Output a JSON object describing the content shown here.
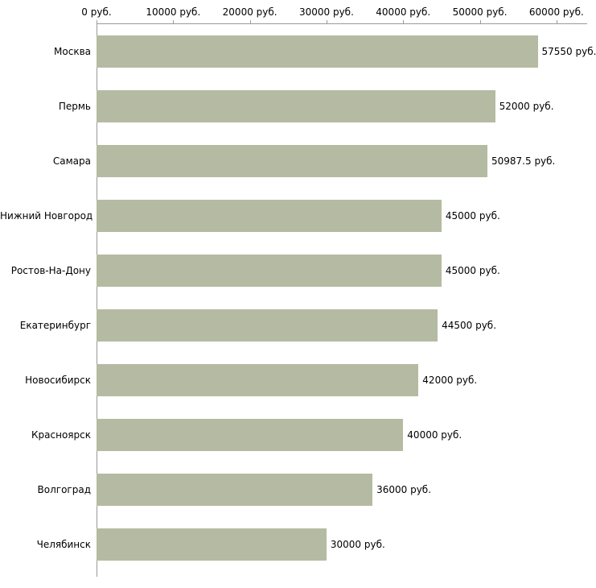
{
  "chart_data": {
    "type": "bar",
    "orientation": "horizontal",
    "title": "",
    "xlabel": "",
    "ylabel": "",
    "grid": false,
    "legend": false,
    "categories": [
      "Москва",
      "Пермь",
      "Самара",
      "Нижний Новгород",
      "Ростов-На-Дону",
      "Екатеринбург",
      "Новосибирск",
      "Красноярск",
      "Волгоград",
      "Челябинск"
    ],
    "values": [
      57550,
      52000,
      50987.5,
      45000,
      45000,
      44500,
      42000,
      40000,
      36000,
      30000
    ],
    "value_labels": [
      "57550 руб.",
      "52000 руб.",
      "50987.5 руб.",
      "45000 руб.",
      "45000 руб.",
      "44500 руб.",
      "42000 руб.",
      "40000 руб.",
      "36000 руб.",
      "30000 руб."
    ],
    "x_ticks": [
      {
        "value": 0,
        "label": "0 руб."
      },
      {
        "value": 10000,
        "label": "10000 руб."
      },
      {
        "value": 20000,
        "label": "20000 руб."
      },
      {
        "value": 30000,
        "label": "30000 руб."
      },
      {
        "value": 40000,
        "label": "40000 руб."
      },
      {
        "value": 50000,
        "label": "50000 руб."
      },
      {
        "value": 60000,
        "label": "60000 руб."
      }
    ],
    "xlim": [
      0,
      64000
    ],
    "bar_color": "#b4bba2",
    "axis_color": "#9a9a9a",
    "text_color": "#000000"
  }
}
